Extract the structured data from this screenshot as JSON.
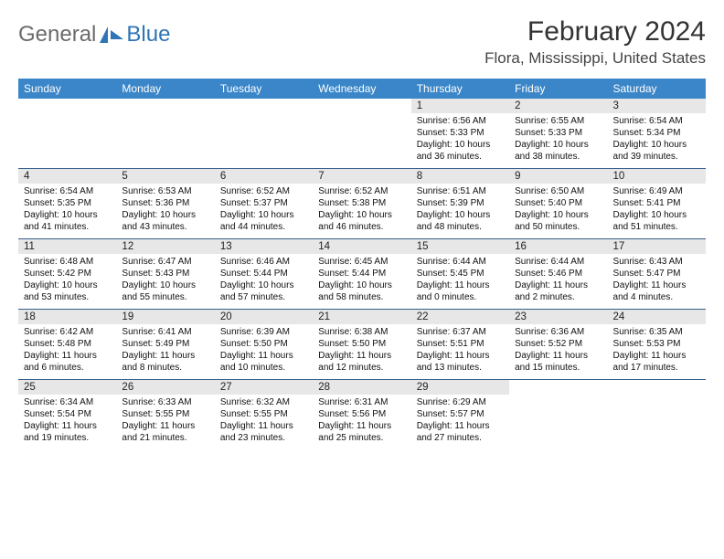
{
  "brand": {
    "part1": "General",
    "part2": "Blue"
  },
  "header": {
    "title": "February 2024",
    "location": "Flora, Mississippi, United States"
  },
  "colors": {
    "header_bg": "#3b86c8",
    "daynum_bg": "#e7e7e7",
    "rule": "#355f8c",
    "brand_blue": "#2f74b5"
  },
  "dow": [
    "Sunday",
    "Monday",
    "Tuesday",
    "Wednesday",
    "Thursday",
    "Friday",
    "Saturday"
  ],
  "weeks": [
    [
      null,
      null,
      null,
      null,
      {
        "n": "1",
        "sr": "6:56 AM",
        "ss": "5:33 PM",
        "dl": "10 hours and 36 minutes."
      },
      {
        "n": "2",
        "sr": "6:55 AM",
        "ss": "5:33 PM",
        "dl": "10 hours and 38 minutes."
      },
      {
        "n": "3",
        "sr": "6:54 AM",
        "ss": "5:34 PM",
        "dl": "10 hours and 39 minutes."
      }
    ],
    [
      {
        "n": "4",
        "sr": "6:54 AM",
        "ss": "5:35 PM",
        "dl": "10 hours and 41 minutes."
      },
      {
        "n": "5",
        "sr": "6:53 AM",
        "ss": "5:36 PM",
        "dl": "10 hours and 43 minutes."
      },
      {
        "n": "6",
        "sr": "6:52 AM",
        "ss": "5:37 PM",
        "dl": "10 hours and 44 minutes."
      },
      {
        "n": "7",
        "sr": "6:52 AM",
        "ss": "5:38 PM",
        "dl": "10 hours and 46 minutes."
      },
      {
        "n": "8",
        "sr": "6:51 AM",
        "ss": "5:39 PM",
        "dl": "10 hours and 48 minutes."
      },
      {
        "n": "9",
        "sr": "6:50 AM",
        "ss": "5:40 PM",
        "dl": "10 hours and 50 minutes."
      },
      {
        "n": "10",
        "sr": "6:49 AM",
        "ss": "5:41 PM",
        "dl": "10 hours and 51 minutes."
      }
    ],
    [
      {
        "n": "11",
        "sr": "6:48 AM",
        "ss": "5:42 PM",
        "dl": "10 hours and 53 minutes."
      },
      {
        "n": "12",
        "sr": "6:47 AM",
        "ss": "5:43 PM",
        "dl": "10 hours and 55 minutes."
      },
      {
        "n": "13",
        "sr": "6:46 AM",
        "ss": "5:44 PM",
        "dl": "10 hours and 57 minutes."
      },
      {
        "n": "14",
        "sr": "6:45 AM",
        "ss": "5:44 PM",
        "dl": "10 hours and 58 minutes."
      },
      {
        "n": "15",
        "sr": "6:44 AM",
        "ss": "5:45 PM",
        "dl": "11 hours and 0 minutes."
      },
      {
        "n": "16",
        "sr": "6:44 AM",
        "ss": "5:46 PM",
        "dl": "11 hours and 2 minutes."
      },
      {
        "n": "17",
        "sr": "6:43 AM",
        "ss": "5:47 PM",
        "dl": "11 hours and 4 minutes."
      }
    ],
    [
      {
        "n": "18",
        "sr": "6:42 AM",
        "ss": "5:48 PM",
        "dl": "11 hours and 6 minutes."
      },
      {
        "n": "19",
        "sr": "6:41 AM",
        "ss": "5:49 PM",
        "dl": "11 hours and 8 minutes."
      },
      {
        "n": "20",
        "sr": "6:39 AM",
        "ss": "5:50 PM",
        "dl": "11 hours and 10 minutes."
      },
      {
        "n": "21",
        "sr": "6:38 AM",
        "ss": "5:50 PM",
        "dl": "11 hours and 12 minutes."
      },
      {
        "n": "22",
        "sr": "6:37 AM",
        "ss": "5:51 PM",
        "dl": "11 hours and 13 minutes."
      },
      {
        "n": "23",
        "sr": "6:36 AM",
        "ss": "5:52 PM",
        "dl": "11 hours and 15 minutes."
      },
      {
        "n": "24",
        "sr": "6:35 AM",
        "ss": "5:53 PM",
        "dl": "11 hours and 17 minutes."
      }
    ],
    [
      {
        "n": "25",
        "sr": "6:34 AM",
        "ss": "5:54 PM",
        "dl": "11 hours and 19 minutes."
      },
      {
        "n": "26",
        "sr": "6:33 AM",
        "ss": "5:55 PM",
        "dl": "11 hours and 21 minutes."
      },
      {
        "n": "27",
        "sr": "6:32 AM",
        "ss": "5:55 PM",
        "dl": "11 hours and 23 minutes."
      },
      {
        "n": "28",
        "sr": "6:31 AM",
        "ss": "5:56 PM",
        "dl": "11 hours and 25 minutes."
      },
      {
        "n": "29",
        "sr": "6:29 AM",
        "ss": "5:57 PM",
        "dl": "11 hours and 27 minutes."
      },
      null,
      null
    ]
  ],
  "labels": {
    "sunrise": "Sunrise: ",
    "sunset": "Sunset: ",
    "daylight": "Daylight: "
  }
}
